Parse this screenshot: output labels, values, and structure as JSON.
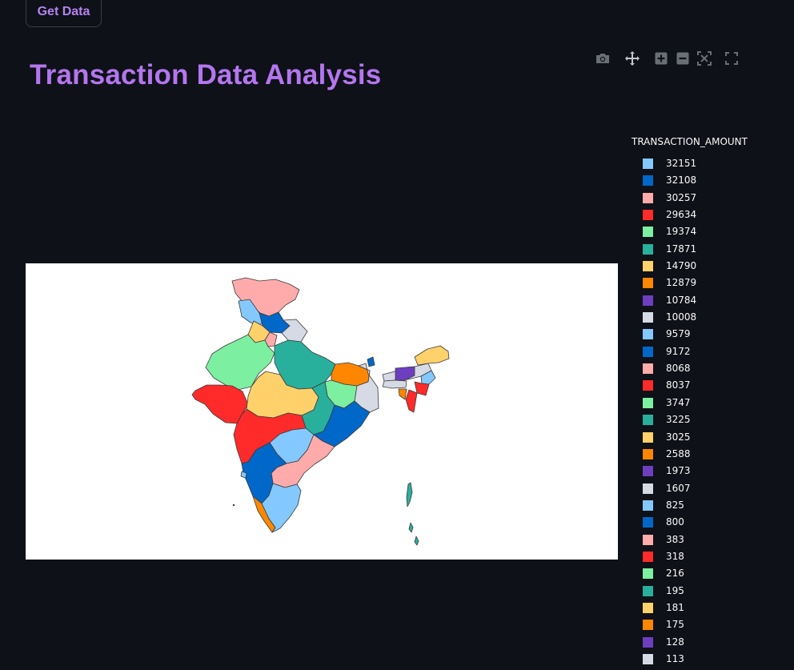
{
  "button": {
    "get_data": "Get Data"
  },
  "title": "Transaction Data Analysis",
  "modebar": {
    "icons": [
      "camera-icon",
      "pan-icon",
      "zoom-in-icon",
      "zoom-out-icon",
      "autoscale-icon",
      "reset-axes-icon"
    ]
  },
  "legend": {
    "title": "TRANSACTION_AMOUNT",
    "items": [
      {
        "label": "32151",
        "color": "#83c9ff"
      },
      {
        "label": "32108",
        "color": "#0068c9"
      },
      {
        "label": "30257",
        "color": "#ffabab"
      },
      {
        "label": "29634",
        "color": "#ff2b2b"
      },
      {
        "label": "19374",
        "color": "#7defa1"
      },
      {
        "label": "17871",
        "color": "#29b09d"
      },
      {
        "label": "14790",
        "color": "#ffd16a"
      },
      {
        "label": "12879",
        "color": "#ff8700"
      },
      {
        "label": "10784",
        "color": "#6d3fc0"
      },
      {
        "label": "10008",
        "color": "#d5dae5"
      },
      {
        "label": "9579",
        "color": "#83c9ff"
      },
      {
        "label": "9172",
        "color": "#0068c9"
      },
      {
        "label": "8068",
        "color": "#ffabab"
      },
      {
        "label": "8037",
        "color": "#ff2b2b"
      },
      {
        "label": "3747",
        "color": "#7defa1"
      },
      {
        "label": "3225",
        "color": "#29b09d"
      },
      {
        "label": "3025",
        "color": "#ffd16a"
      },
      {
        "label": "2588",
        "color": "#ff8700"
      },
      {
        "label": "1973",
        "color": "#6d3fc0"
      },
      {
        "label": "1607",
        "color": "#d5dae5"
      },
      {
        "label": "825",
        "color": "#83c9ff"
      },
      {
        "label": "800",
        "color": "#0068c9"
      },
      {
        "label": "383",
        "color": "#ffabab"
      },
      {
        "label": "318",
        "color": "#ff2b2b"
      },
      {
        "label": "216",
        "color": "#7defa1"
      },
      {
        "label": "195",
        "color": "#29b09d"
      },
      {
        "label": "181",
        "color": "#ffd16a"
      },
      {
        "label": "175",
        "color": "#ff8700"
      },
      {
        "label": "128",
        "color": "#6d3fc0"
      },
      {
        "label": "113",
        "color": "#d5dae5"
      }
    ]
  },
  "map": {
    "colors": {
      "light_blue": "#83c9ff",
      "blue": "#0068c9",
      "pink": "#ffabab",
      "red": "#ff2b2b",
      "green": "#7defa1",
      "teal": "#29b09d",
      "yellow": "#ffd16a",
      "orange": "#ff8700",
      "purple": "#6d3fc0",
      "grey": "#d5dae5",
      "border": "#3a3a3a"
    }
  }
}
